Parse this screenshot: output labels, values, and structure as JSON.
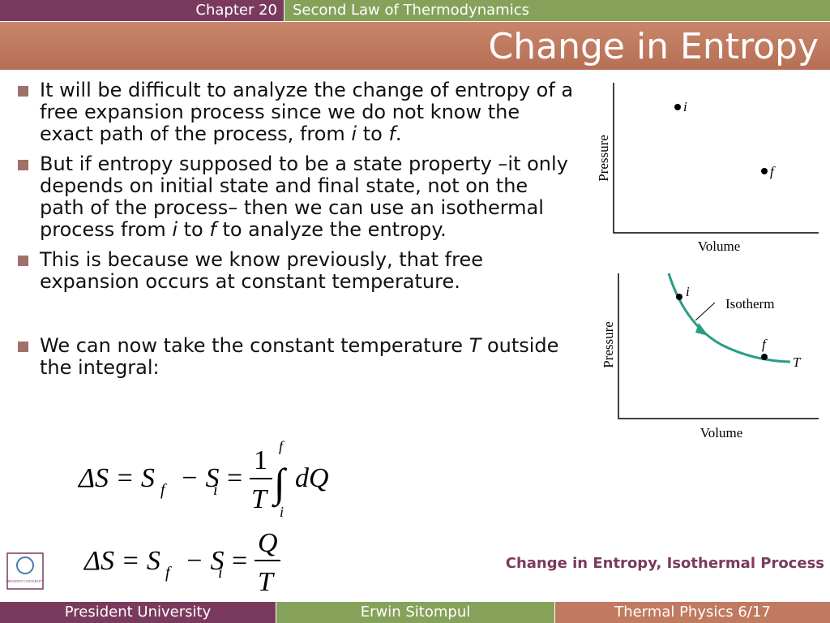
{
  "header": {
    "chapter": "Chapter 20",
    "subject": "Second Law of Thermodynamics",
    "title": "Change in Entropy"
  },
  "bullets": [
    [
      "It will be difficult to analyze the change of entropy of a free expansion process since we do not know the exact path of the process, from ",
      "i",
      " to ",
      "f",
      "."
    ],
    [
      "But if entropy supposed to be a state property –it only depends on initial state and final state, not on the path of the process– then we can use an isothermal process from ",
      "i",
      " to ",
      "f",
      " to analyze the entropy."
    ],
    [
      "This is because we know previously, that free expansion occurs at constant temperature."
    ],
    [
      "We can now take the constant temperature ",
      "T",
      " outside the integral:"
    ]
  ],
  "equation_1": {
    "left": "ΔS = S",
    "sub_f": "f",
    "minus": "− S",
    "sub_i": "i",
    "equals": "=",
    "numerator": "1",
    "denominator": "T",
    "integral": "∫",
    "upper": "f",
    "lower": "i",
    "integrand": "dQ"
  },
  "equation_2": {
    "left": "ΔS = S",
    "sub_f": "f",
    "minus": "− S",
    "sub_i": "i",
    "equals": "=",
    "numerator": "Q",
    "denominator": "T"
  },
  "diagram_1": {
    "y_label": "Pressure",
    "x_label": "Volume",
    "point_i": "i",
    "point_f": "f"
  },
  "diagram_2": {
    "y_label": "Pressure",
    "x_label": "Volume",
    "point_i": "i",
    "point_f": "f",
    "curve_label": "Isotherm",
    "temperature": "T"
  },
  "logo": "PRESIDENT UNIVERSITY",
  "side_note": "Change in Entropy, Isothermal Process",
  "footer": {
    "left": "President University",
    "center": "Erwin Sitompul",
    "right": "Thermal Physics 6/17"
  }
}
